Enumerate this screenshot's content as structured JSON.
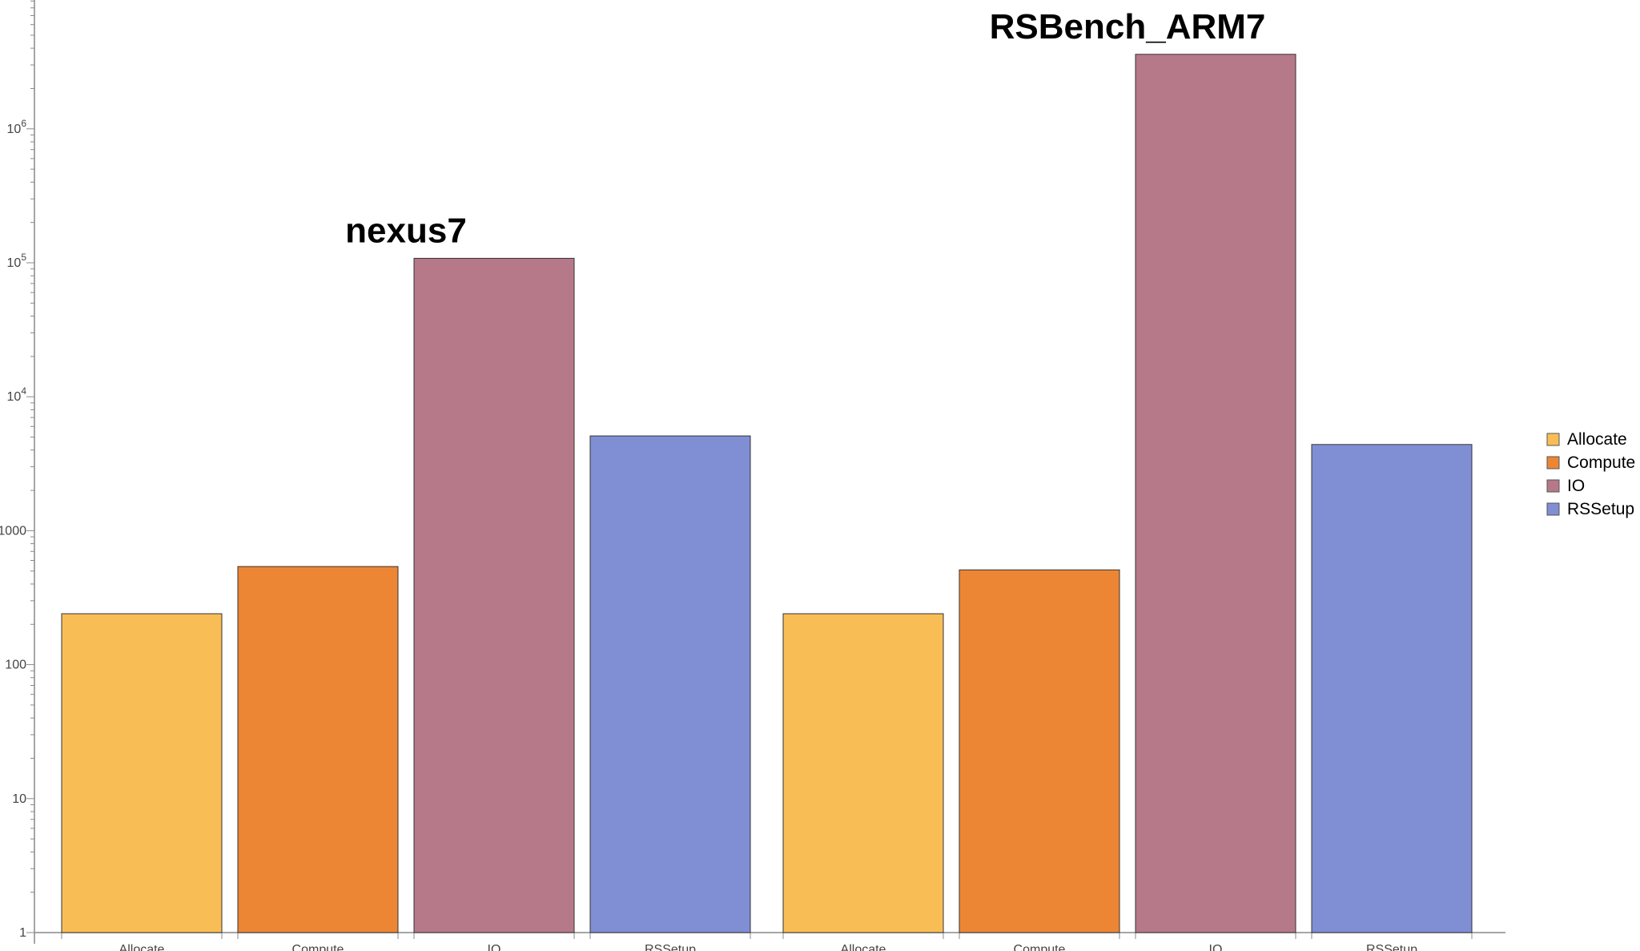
{
  "chart_data": {
    "type": "bar",
    "scale": "log",
    "ylim": [
      1,
      10000000
    ],
    "ytick_labels": [
      {
        "value": 1,
        "label": "1"
      },
      {
        "value": 10,
        "label": "10"
      },
      {
        "value": 100,
        "label": "100"
      },
      {
        "value": 1000,
        "label": "1000"
      },
      {
        "value": 10000,
        "base": "10",
        "exp": "4"
      },
      {
        "value": 100000,
        "base": "10",
        "exp": "5"
      },
      {
        "value": 1000000,
        "base": "10",
        "exp": "6"
      }
    ],
    "categories": [
      "Allocate",
      "Compute",
      "IO",
      "RSSetup"
    ],
    "groups": [
      {
        "name": "nexus7",
        "values": [
          240,
          540,
          108000,
          5100
        ]
      },
      {
        "name": "RSBench_ARM7",
        "values": [
          240,
          510,
          3600000,
          4400
        ]
      }
    ],
    "legend": {
      "position": "right",
      "entries": [
        {
          "label": "Allocate",
          "color": "#F8BE55"
        },
        {
          "label": "Compute",
          "color": "#ED8634"
        },
        {
          "label": "IO",
          "color": "#B6798A"
        },
        {
          "label": "RSSetup",
          "color": "#808ED4"
        }
      ]
    },
    "colors": {
      "Allocate": "#F8BE55",
      "Compute": "#ED8634",
      "IO": "#B6798A",
      "RSSetup": "#808ED4"
    },
    "grid": false
  }
}
